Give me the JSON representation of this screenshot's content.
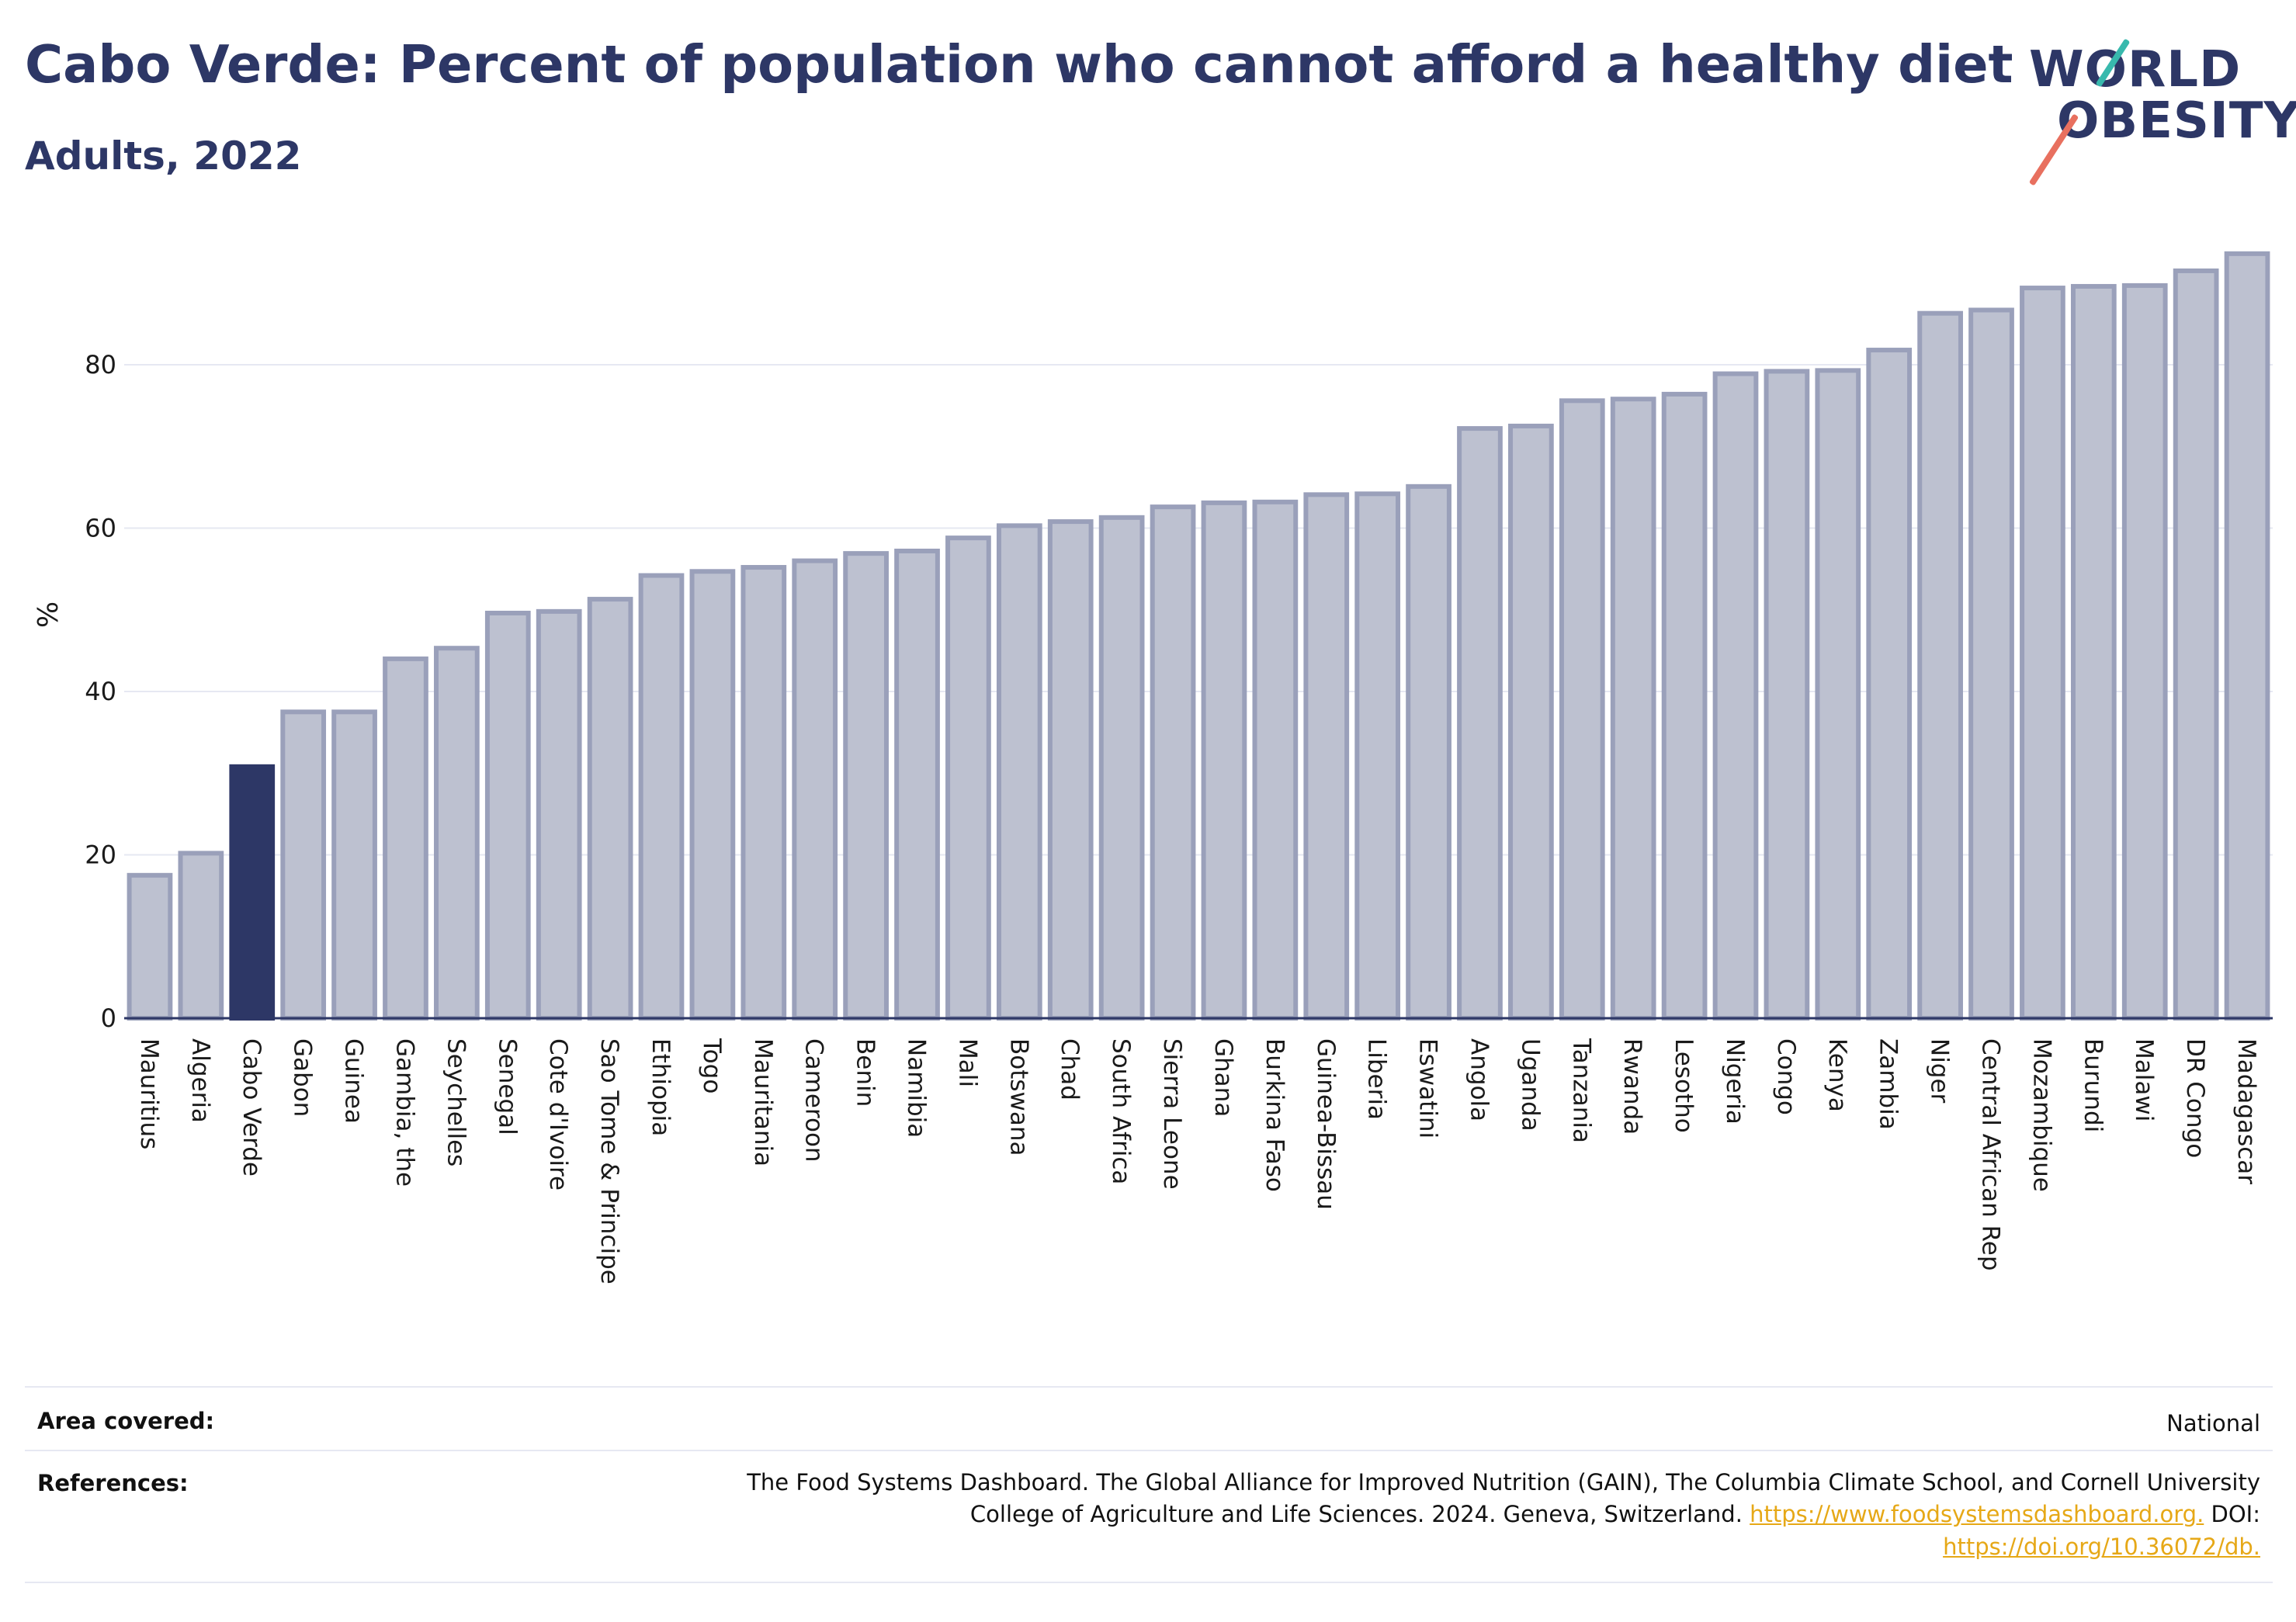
{
  "header": {
    "title": "Cabo Verde: Percent of population who cannot afford a healthy diet",
    "subtitle": "Adults, 2022",
    "logo_line1": "WORLD",
    "logo_line2": "OBESITY"
  },
  "colors": {
    "title": "#2d3766",
    "bar_fill": "#bdc1d0",
    "bar_stroke": "#9aa0ba",
    "highlight_fill": "#2d3766",
    "grid": "#e6e8f2",
    "axis": "#2d3766",
    "link": "#e6a817"
  },
  "chart_data": {
    "type": "bar",
    "ylabel": "%",
    "xlabel": "",
    "ylim": [
      0,
      95
    ],
    "yticks": [
      0,
      20,
      40,
      60,
      80
    ],
    "grid": true,
    "highlight": "Cabo Verde",
    "categories": [
      "Mauritius",
      "Algeria",
      "Cabo Verde",
      "Gabon",
      "Guinea",
      "Gambia, the",
      "Seychelles",
      "Senegal",
      "Cote d'Ivoire",
      "Sao Tome & Principe",
      "Ethiopia",
      "Togo",
      "Mauritania",
      "Cameroon",
      "Benin",
      "Namibia",
      "Mali",
      "Botswana",
      "Chad",
      "South Africa",
      "Sierra Leone",
      "Ghana",
      "Burkina Faso",
      "Guinea-Bissau",
      "Liberia",
      "Eswatini",
      "Angola",
      "Uganda",
      "Tanzania",
      "Rwanda",
      "Lesotho",
      "Nigeria",
      "Congo",
      "Kenya",
      "Zambia",
      "Niger",
      "Central African Rep",
      "Mozambique",
      "Burundi",
      "Malawi",
      "DR Congo",
      "Madagascar"
    ],
    "values": [
      17.5,
      20.2,
      30.8,
      37.5,
      37.5,
      44.0,
      45.3,
      49.6,
      49.8,
      51.3,
      54.2,
      54.7,
      55.2,
      56.0,
      56.9,
      57.2,
      58.8,
      60.3,
      60.8,
      61.3,
      62.6,
      63.1,
      63.2,
      64.1,
      64.2,
      65.1,
      72.2,
      72.5,
      75.6,
      75.8,
      76.4,
      78.9,
      79.2,
      79.3,
      81.8,
      86.3,
      86.7,
      89.4,
      89.6,
      89.7,
      91.5,
      93.6
    ]
  },
  "footer": {
    "area_label": "Area covered:",
    "area_value": "National",
    "ref_label": "References:",
    "ref_text1": "The Food Systems Dashboard. The Global Alliance for Improved Nutrition (GAIN), The Columbia Climate School, and Cornell University",
    "ref_text2": "College of Agriculture and Life Sciences. 2024. Geneva, Switzerland.",
    "ref_link1": "https://www.foodsystemsdashboard.org.",
    "ref_doi": "DOI:",
    "ref_link2": "https://doi.org/10.36072/db."
  }
}
